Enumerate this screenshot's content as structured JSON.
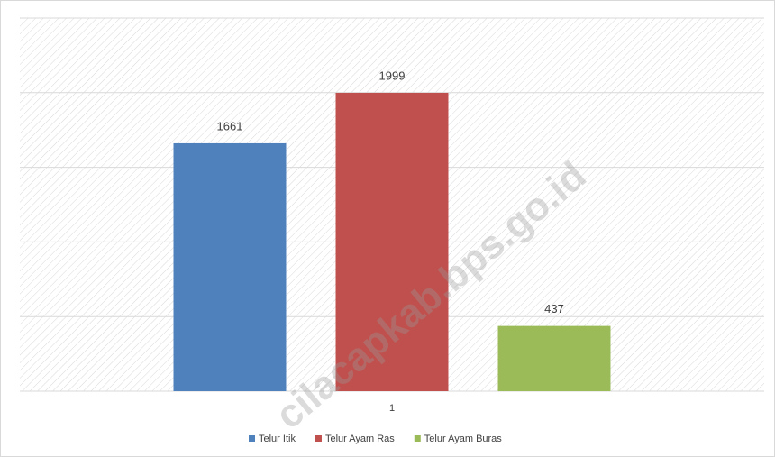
{
  "chart_data": {
    "type": "bar",
    "categories": [
      "1"
    ],
    "series": [
      {
        "name": "Telur Itik",
        "color": "#4f81bd",
        "values": [
          1661
        ]
      },
      {
        "name": "Telur Ayam Ras",
        "color": "#c0504d",
        "values": [
          1999
        ]
      },
      {
        "name": "Telur Ayam Buras",
        "color": "#9bbb59",
        "values": [
          437
        ]
      }
    ],
    "ylim": [
      0,
      2500
    ],
    "yticks": [
      0,
      500,
      1000,
      1500,
      2000,
      2500
    ],
    "grid": true,
    "legend": "bottom",
    "watermark": "cilacapkab.bps.go.id"
  }
}
